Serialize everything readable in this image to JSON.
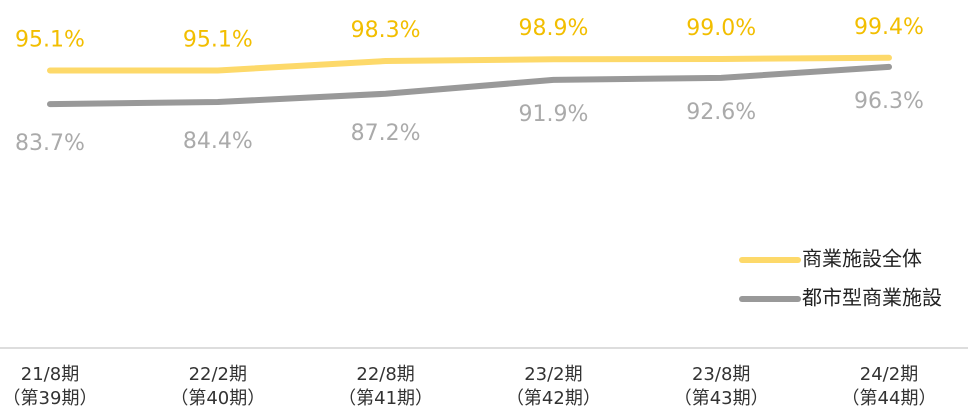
{
  "chart_data": {
    "type": "line",
    "categories": [
      [
        "21/8期",
        "（第39期）"
      ],
      [
        "22/2期",
        "（第40期）"
      ],
      [
        "22/8期",
        "（第41期）"
      ],
      [
        "23/2期",
        "（第42期）"
      ],
      [
        "23/8期",
        "（第43期）"
      ],
      [
        "24/2期",
        "（第44期）"
      ]
    ],
    "series": [
      {
        "name": "商業施設全体",
        "color": "#fdd96a",
        "label_color": "#f2be00",
        "values": [
          95.1,
          95.1,
          98.3,
          98.9,
          99.0,
          99.4
        ],
        "value_labels": [
          "95.1%",
          "95.1%",
          "98.3%",
          "98.9%",
          "99.0%",
          "99.4%"
        ]
      },
      {
        "name": "都市型商業施設",
        "color": "#999999",
        "label_color": "#aaaaaa",
        "values": [
          83.7,
          84.4,
          87.2,
          91.9,
          92.6,
          96.3
        ],
        "value_labels": [
          "83.7%",
          "84.4%",
          "87.2%",
          "91.9%",
          "92.6%",
          "96.3%"
        ]
      }
    ],
    "ylim": [
      60,
      100
    ]
  }
}
